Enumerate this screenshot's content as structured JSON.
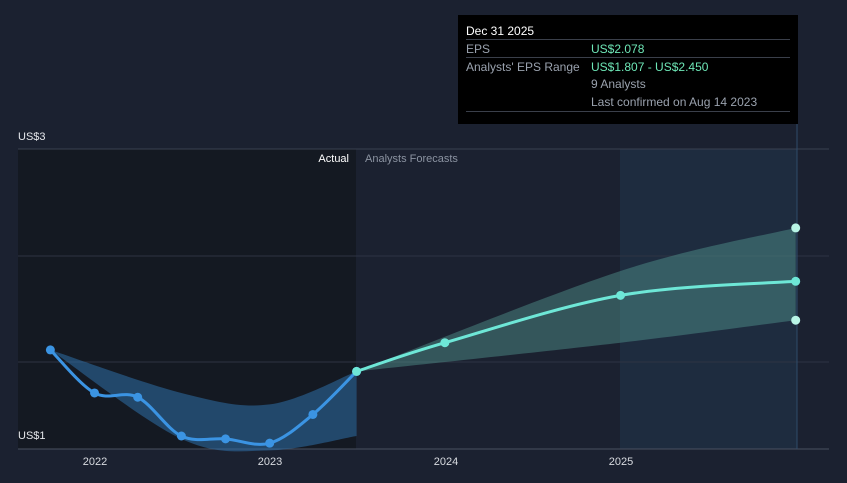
{
  "chart_data": {
    "type": "line",
    "currency_axis": [
      "US$3",
      "US$1"
    ],
    "ylim": [
      1,
      3
    ],
    "region_labels": {
      "actual": "Actual",
      "forecast": "Analysts Forecasts"
    },
    "x_ticks": [
      "2022",
      "2023",
      "2024",
      "2025"
    ],
    "series": [
      {
        "role": "actual",
        "color": "#3b94e3",
        "points": [
          {
            "x": "2021-09-30",
            "y": 1.6
          },
          {
            "x": "2021-12-31",
            "y": 1.3
          },
          {
            "x": "2022-03-31",
            "y": 1.27
          },
          {
            "x": "2022-06-30",
            "y": 1.0
          },
          {
            "x": "2022-09-30",
            "y": 0.98
          },
          {
            "x": "2022-12-31",
            "y": 0.95
          },
          {
            "x": "2023-03-31",
            "y": 1.15
          },
          {
            "x": "2023-06-30",
            "y": 1.45
          }
        ]
      },
      {
        "role": "forecast",
        "color": "#6ee7d7",
        "points": [
          {
            "x": "2023-06-30",
            "y": 1.45
          },
          {
            "x": "2023-12-31",
            "y": 1.65
          },
          {
            "x": "2024-12-31",
            "y": 1.98
          },
          {
            "x": "2025-12-31",
            "y": 2.078
          }
        ]
      }
    ],
    "forecast_range": {
      "high": [
        {
          "x": "2023-06-30",
          "y": 1.45
        },
        {
          "x": "2024-12-31",
          "y": 2.15
        },
        {
          "x": "2025-12-31",
          "y": 2.45
        }
      ],
      "low": [
        {
          "x": "2023-06-30",
          "y": 1.45
        },
        {
          "x": "2024-12-31",
          "y": 1.65
        },
        {
          "x": "2025-12-31",
          "y": 1.807
        }
      ]
    },
    "actual_band": {
      "upper": [
        {
          "x": "2021-09-30",
          "y": 1.6
        },
        {
          "x": "2022-06-30",
          "y": 1.3
        },
        {
          "x": "2022-12-31",
          "y": 1.22
        },
        {
          "x": "2023-06-30",
          "y": 1.45
        }
      ],
      "lower": [
        {
          "x": "2021-09-30",
          "y": 1.6
        },
        {
          "x": "2022-06-30",
          "y": 0.98
        },
        {
          "x": "2022-12-31",
          "y": 0.9
        },
        {
          "x": "2023-06-30",
          "y": 1.0
        }
      ]
    },
    "colors": {
      "background": "#1b2130",
      "actual_shade": "#141922",
      "forecast_fill": "#5aa89d",
      "grid": "#3a4150",
      "highlight_col": "#203246"
    }
  },
  "tooltip": {
    "title": "Dec 31 2025",
    "rows": [
      {
        "key": "EPS",
        "value": "US$2.078"
      },
      {
        "key": "Analysts' EPS Range",
        "value_low": "US$1.807",
        "sep": " - ",
        "value_high": "US$2.450"
      },
      {
        "key": "",
        "value": "9 Analysts"
      },
      {
        "key": "",
        "value": "Last confirmed on Aug 14 2023"
      }
    ]
  }
}
